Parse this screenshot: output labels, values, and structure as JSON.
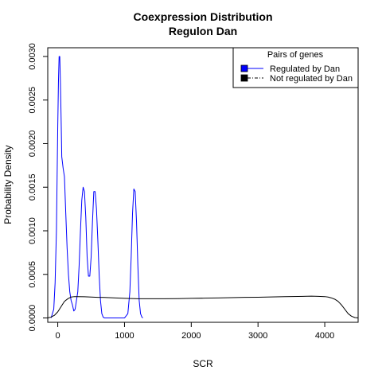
{
  "chart_data": {
    "type": "line",
    "title": "Coexpression Distribution",
    "subtitle": "Regulon Dan",
    "xlabel": "SCR",
    "ylabel": "Probability Density",
    "xlim": [
      -150,
      4500
    ],
    "ylim": [
      -5e-05,
      0.0031
    ],
    "x_ticks": [
      0,
      1000,
      2000,
      3000,
      4000
    ],
    "x_tick_labels": [
      "0",
      "1000",
      "2000",
      "3000",
      "4000"
    ],
    "y_ticks": [
      0,
      0.0005,
      0.001,
      0.0015,
      0.002,
      0.0025,
      0.003
    ],
    "y_tick_labels": [
      "0.0000",
      "0.0005",
      "0.0010",
      "0.0015",
      "0.0020",
      "0.0025",
      "0.0030"
    ],
    "grid": false,
    "legend": {
      "title": "Pairs of genes",
      "position": "top-right",
      "entries": [
        {
          "label": "Regulated by  Dan",
          "color": "#0000ff",
          "fill": "#0000ff",
          "line": "solid"
        },
        {
          "label": "Not regulated by  Dan",
          "color": "#000000",
          "fill": "#000000",
          "line": "dashdot"
        }
      ]
    },
    "series": [
      {
        "name": "Regulated by  Dan",
        "color": "#0000ff",
        "x": [
          -100,
          -60,
          -40,
          -20,
          -10,
          0,
          10,
          20,
          30,
          40,
          50,
          60,
          80,
          100,
          120,
          140,
          160,
          180,
          200,
          220,
          240,
          260,
          280,
          300,
          320,
          340,
          360,
          380,
          400,
          420,
          440,
          460,
          480,
          500,
          520,
          540,
          560,
          580,
          600,
          620,
          640,
          660,
          680,
          700,
          750,
          800,
          900,
          1000,
          1050,
          1080,
          1100,
          1120,
          1140,
          1160,
          1180,
          1200,
          1220,
          1240,
          1260,
          1275
        ],
        "y": [
          0,
          0.0001,
          0.0004,
          0.001,
          0.0016,
          0.0022,
          0.0027,
          0.003,
          0.003,
          0.0027,
          0.0023,
          0.00185,
          0.00172,
          0.00162,
          0.0012,
          0.0008,
          0.0005,
          0.0003,
          0.0002,
          0.00015,
          8e-05,
          0.0001,
          0.0002,
          0.0003,
          0.0006,
          0.001,
          0.00135,
          0.0015,
          0.00145,
          0.00115,
          0.0007,
          0.00048,
          0.00048,
          0.0007,
          0.0011,
          0.00145,
          0.00145,
          0.00125,
          0.0009,
          0.0005,
          0.0002,
          5e-05,
          1e-05,
          0,
          0,
          0,
          0,
          0,
          5e-05,
          0.0003,
          0.0007,
          0.0012,
          0.00148,
          0.00145,
          0.0011,
          0.0006,
          0.0002,
          5e-05,
          1e-05,
          0
        ]
      },
      {
        "name": "Not regulated by  Dan",
        "color": "#000000",
        "x": [
          -150,
          -100,
          -50,
          0,
          50,
          100,
          150,
          200,
          250,
          300,
          400,
          500,
          600,
          700,
          800,
          900,
          1000,
          1200,
          1400,
          1600,
          1800,
          2000,
          2200,
          2400,
          2600,
          2800,
          3000,
          3200,
          3400,
          3600,
          3800,
          3900,
          4000,
          4050,
          4100,
          4150,
          4200,
          4250,
          4300,
          4350,
          4400,
          4450,
          4500
        ],
        "y": [
          0,
          1e-05,
          3e-05,
          7e-05,
          0.00013,
          0.00019,
          0.00022,
          0.00024,
          0.000245,
          0.000245,
          0.000243,
          0.00024,
          0.000237,
          0.000235,
          0.000232,
          0.000228,
          0.000225,
          0.00022,
          0.00022,
          0.00022,
          0.000222,
          0.000225,
          0.000227,
          0.00023,
          0.000233,
          0.000236,
          0.000238,
          0.000241,
          0.000244,
          0.000247,
          0.00025,
          0.000248,
          0.000245,
          0.00024,
          0.00023,
          0.000215,
          0.00019,
          0.00015,
          0.0001,
          5e-05,
          2e-05,
          5e-06,
          0
        ]
      }
    ]
  }
}
